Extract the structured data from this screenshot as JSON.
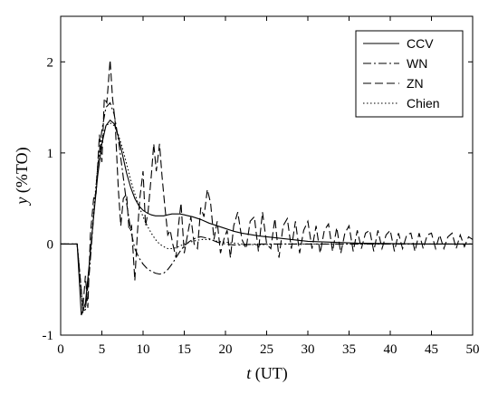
{
  "chart_data": {
    "type": "line",
    "title": "",
    "xlabel_var": "t",
    "xlabel_unit": " (UT)",
    "ylabel_var": "y",
    "ylabel_unit": " (%TO)",
    "xlim": [
      0,
      50
    ],
    "ylim": [
      -1,
      2.5
    ],
    "xticks": [
      0,
      5,
      10,
      15,
      20,
      25,
      30,
      35,
      40,
      45,
      50
    ],
    "yticks": [
      -1,
      0,
      1,
      2
    ],
    "grid": false,
    "legend_position": "top-right",
    "series": [
      {
        "name": "CCV",
        "style": "solid",
        "x": [
          0,
          2,
          2.2,
          2.5,
          3,
          3.5,
          4,
          4.5,
          5,
          5.5,
          6,
          6.5,
          7,
          7.5,
          8,
          8.5,
          9,
          9.5,
          10,
          10.5,
          11,
          11.5,
          12,
          12.5,
          13,
          13.5,
          14,
          14.5,
          15,
          15.5,
          16,
          17,
          18,
          19,
          20,
          21,
          22,
          24,
          26,
          28,
          30,
          33,
          36,
          40,
          45,
          50
        ],
        "y": [
          0,
          0,
          -0.3,
          -0.78,
          -0.65,
          -0.2,
          0.3,
          0.75,
          1.1,
          1.3,
          1.36,
          1.32,
          1.18,
          0.98,
          0.78,
          0.62,
          0.5,
          0.42,
          0.37,
          0.34,
          0.32,
          0.31,
          0.31,
          0.31,
          0.32,
          0.33,
          0.33,
          0.33,
          0.32,
          0.31,
          0.3,
          0.27,
          0.23,
          0.2,
          0.17,
          0.14,
          0.12,
          0.09,
          0.07,
          0.05,
          0.03,
          0.02,
          0.01,
          0.005,
          0.0,
          0.0
        ]
      },
      {
        "name": "WN",
        "style": "dashdot",
        "x": [
          0,
          2,
          2.3,
          2.7,
          3,
          3.5,
          4,
          4.5,
          5,
          5.5,
          6,
          6.5,
          7,
          7.5,
          8,
          8.5,
          9,
          9.5,
          10,
          10.5,
          11,
          11.5,
          12,
          12.5,
          13,
          13.5,
          14,
          14.5,
          15,
          15.5,
          16,
          16.5,
          17,
          17.5,
          18,
          18.5,
          19,
          20,
          21,
          22,
          24,
          26,
          28,
          30,
          35,
          40,
          45,
          50
        ],
        "y": [
          0,
          0,
          -0.3,
          -0.75,
          -0.72,
          -0.3,
          0.3,
          0.85,
          1.25,
          1.5,
          1.55,
          1.42,
          1.15,
          0.8,
          0.45,
          0.15,
          -0.05,
          -0.15,
          -0.22,
          -0.27,
          -0.3,
          -0.32,
          -0.33,
          -0.32,
          -0.28,
          -0.22,
          -0.15,
          -0.08,
          -0.02,
          0.02,
          0.05,
          0.07,
          0.08,
          0.07,
          0.06,
          0.04,
          0.02,
          0.0,
          -0.01,
          -0.01,
          0.0,
          0.0,
          0.0,
          0.0,
          0.0,
          0.0,
          0.0,
          0.0
        ]
      },
      {
        "name": "ZN",
        "style": "dashed",
        "x": [
          0,
          2,
          2.3,
          2.7,
          3,
          3.3,
          3.6,
          4,
          4.3,
          4.7,
          5,
          5.3,
          5.6,
          6,
          6.3,
          6.6,
          7,
          7.3,
          7.6,
          8,
          8.3,
          8.6,
          9,
          9.3,
          9.6,
          10,
          10.3,
          10.6,
          11,
          11.3,
          11.6,
          12,
          12.3,
          12.6,
          13,
          13.3,
          13.6,
          14,
          14.3,
          14.6,
          15,
          15.4,
          15.8,
          16.2,
          16.6,
          17,
          17.4,
          17.8,
          18.2,
          18.6,
          19,
          19.4,
          19.8,
          20.2,
          20.6,
          21,
          21.5,
          22,
          22.5,
          23,
          23.5,
          24,
          24.5,
          25,
          25.5,
          26,
          26.5,
          27,
          27.5,
          28,
          28.5,
          29,
          29.5,
          30,
          30.5,
          31,
          31.5,
          32,
          32.5,
          33,
          33.5,
          34,
          34.5,
          35,
          35.5,
          36,
          36.5,
          37,
          37.5,
          38,
          38.5,
          39,
          39.5,
          40,
          40.5,
          41,
          41.5,
          42,
          42.5,
          43,
          43.5,
          44,
          44.5,
          45,
          45.5,
          46,
          46.5,
          47,
          47.5,
          48,
          48.5,
          49,
          49.5,
          50
        ],
        "y": [
          0,
          0,
          -0.3,
          -0.7,
          -0.35,
          -0.7,
          0.1,
          0.5,
          0.55,
          1.2,
          0.9,
          1.6,
          1.55,
          2.02,
          1.6,
          1.35,
          0.6,
          0.2,
          0.5,
          0.55,
          0.15,
          0.2,
          -0.4,
          0.1,
          0.5,
          0.8,
          0.2,
          0.35,
          0.75,
          1.1,
          0.8,
          1.1,
          0.75,
          0.45,
          0.1,
          0.15,
          0.0,
          -0.15,
          0.2,
          0.45,
          -0.1,
          0.1,
          0.3,
          0.0,
          -0.05,
          0.4,
          0.3,
          0.6,
          0.45,
          0.05,
          0.25,
          -0.1,
          0.05,
          0.15,
          -0.15,
          0.2,
          0.35,
          0.05,
          -0.05,
          0.25,
          0.3,
          -0.08,
          0.35,
          0.0,
          -0.05,
          0.28,
          -0.15,
          0.2,
          0.28,
          -0.05,
          0.25,
          -0.1,
          0.15,
          0.25,
          -0.05,
          0.2,
          -0.1,
          0.15,
          0.22,
          -0.08,
          0.18,
          -0.1,
          0.12,
          0.2,
          -0.08,
          0.15,
          -0.05,
          0.12,
          0.15,
          -0.08,
          0.15,
          -0.05,
          0.1,
          0.15,
          -0.08,
          0.12,
          -0.05,
          0.1,
          0.12,
          -0.08,
          0.12,
          -0.05,
          0.1,
          0.12,
          -0.05,
          0.1,
          -0.05,
          0.08,
          0.12,
          -0.05,
          0.1,
          -0.03,
          0.08,
          0.05
        ]
      },
      {
        "name": "Chien",
        "style": "dotted",
        "x": [
          0,
          2,
          2.3,
          2.7,
          3,
          3.5,
          4,
          4.5,
          5,
          5.5,
          6,
          6.5,
          7,
          7.5,
          8,
          8.5,
          9,
          9.5,
          10,
          10.5,
          11,
          11.5,
          12,
          12.5,
          13,
          13.5,
          14,
          15,
          16,
          17,
          18,
          19,
          20,
          22,
          24,
          26,
          30,
          35,
          40,
          45,
          50
        ],
        "y": [
          0,
          0,
          -0.3,
          -0.75,
          -0.7,
          -0.25,
          0.35,
          0.85,
          1.15,
          1.3,
          1.33,
          1.3,
          1.2,
          1.05,
          0.88,
          0.7,
          0.55,
          0.42,
          0.3,
          0.2,
          0.12,
          0.05,
          0.0,
          -0.03,
          -0.05,
          -0.05,
          -0.04,
          0.0,
          0.03,
          0.05,
          0.05,
          0.03,
          0.02,
          0.0,
          -0.01,
          0.0,
          0.0,
          0.0,
          0.0,
          0.0,
          0.0
        ]
      }
    ]
  }
}
